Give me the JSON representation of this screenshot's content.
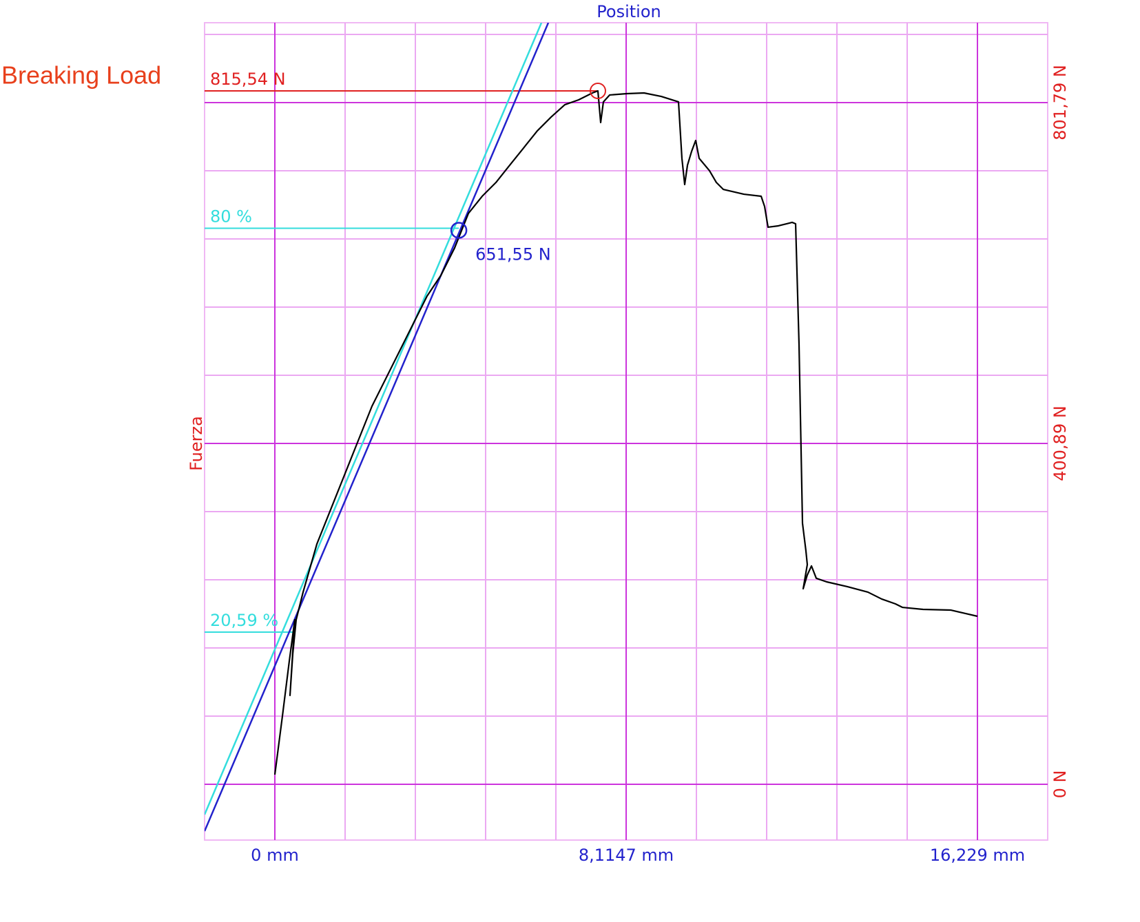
{
  "chart_data": {
    "type": "line",
    "title": "Position",
    "ylabel": "Fuerza",
    "annotation_title": "Breaking Load",
    "xlim": [
      -1.6229,
      17.8519
    ],
    "ylim": [
      -65.6,
      895.7
    ],
    "xticks": [
      {
        "value": 0,
        "label": "0 mm"
      },
      {
        "value": 8.1147,
        "label": "8,1147 mm"
      },
      {
        "value": 16.229,
        "label": "16,229 mm"
      }
    ],
    "yticks": [
      {
        "value": 0,
        "label": "0 N"
      },
      {
        "value": 400.89,
        "label": "400,89 N"
      },
      {
        "value": 801.79,
        "label": "801,79 N"
      }
    ],
    "xminor": [
      1.6229,
      3.2458,
      4.8687,
      6.4916,
      9.7375,
      11.3604,
      12.9833,
      14.6062
    ],
    "yminor": [
      80.18,
      160.36,
      240.53,
      320.71,
      481.07,
      561.25,
      641.43,
      721.61,
      881.97
    ],
    "grid": true,
    "series": [
      {
        "color": "#000000",
        "x": [
          0,
          0.175,
          0.334,
          0.461,
          0.35,
          0.414,
          0.493,
          0.652,
          0.971,
          1.289,
          1.607,
          1.925,
          2.243,
          2.562,
          2.88,
          3.198,
          3.516,
          3.835,
          4.153,
          4.471,
          4.789,
          5.107,
          5.425,
          5.744,
          6.062,
          6.38,
          6.698,
          7.017,
          7.335,
          7.462,
          7.526,
          7.589,
          7.733,
          8.13,
          8.528,
          8.926,
          9.324,
          9.403,
          9.467,
          9.531,
          9.626,
          9.721,
          9.801,
          10.04,
          10.199,
          10.358,
          10.835,
          11.233,
          11.313,
          11.392,
          11.631,
          11.949,
          12.029,
          12.108,
          12.188,
          12.267,
          12.299,
          12.204,
          12.299,
          12.395,
          12.506,
          12.745,
          13.222,
          13.699,
          14.017,
          14.335,
          14.495,
          14.972,
          15.609,
          16.229
        ],
        "values": [
          11.3,
          80.2,
          145,
          193.6,
          104.5,
          153.1,
          193.6,
          225.9,
          282.6,
          323.1,
          363.6,
          404.1,
          444.6,
          477,
          509.4,
          541.8,
          574.2,
          598.5,
          630.9,
          671.4,
          691.6,
          707.8,
          728.1,
          748.3,
          768.5,
          784.7,
          799.3,
          805,
          813.1,
          815.5,
          778.3,
          802.6,
          810.7,
          812.3,
          813.1,
          809,
          802.6,
          736.2,
          705.4,
          728.1,
          744.3,
          757.2,
          736.2,
          721.6,
          707.8,
          699.7,
          694,
          691.6,
          679.5,
          655.2,
          656.8,
          660.9,
          659.2,
          517.5,
          307,
          274.6,
          258.4,
          230,
          246.2,
          256.8,
          242.3,
          238.1,
          232.5,
          226,
          217.9,
          212.2,
          208.1,
          205.7,
          204.9,
          197.6
        ]
      }
    ],
    "fit_lines": [
      {
        "color": "#33dddd",
        "x": [
          -1.623,
          6.158
        ],
        "values": [
          -35.6,
          895.7
        ]
      },
      {
        "color": "#2222cc",
        "x": [
          -1.623,
          6.317
        ],
        "values": [
          -55.1,
          895.7
        ]
      }
    ],
    "breaking_load": {
      "value": 815.54,
      "label": "815,54 N",
      "x": 7.462,
      "color": "#e02020"
    },
    "levels": [
      {
        "label": "80 %",
        "value": 654,
        "x": 4.25,
        "color": "#33dddd"
      },
      {
        "label": "20,59 %",
        "value": 179,
        "x": 0.45,
        "color": "#33dddd"
      }
    ],
    "point": {
      "x": 4.25,
      "value": 651.55,
      "label": "651,55 N",
      "color": "#2222cc"
    }
  }
}
